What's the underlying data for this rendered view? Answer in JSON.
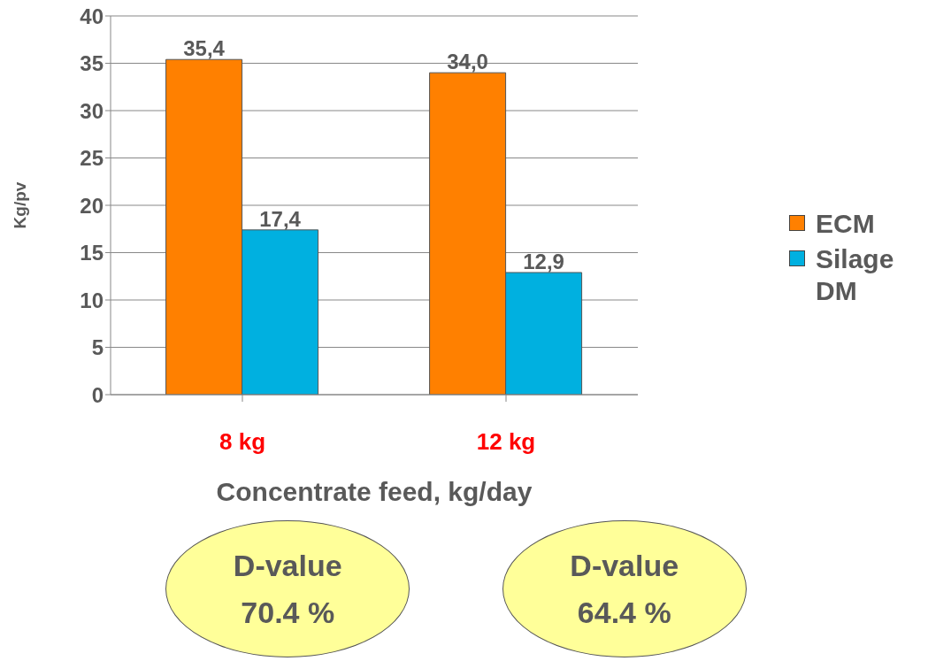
{
  "chart_data": {
    "type": "bar",
    "ylabel": "Kg/pv",
    "xlabel": "Concentrate feed, kg/day",
    "categories": [
      "8 kg",
      "12 kg"
    ],
    "series": [
      {
        "name": "ECM",
        "color": "#ff8000",
        "values": [
          35.4,
          34.0
        ],
        "value_labels": [
          "35,4",
          "34,0"
        ]
      },
      {
        "name": "Silage DM",
        "color": "#00b0e0",
        "values": [
          17.4,
          12.9
        ],
        "value_labels": [
          "17,4",
          "12,9"
        ]
      }
    ],
    "ylim": [
      0,
      40
    ],
    "yticks": [
      0,
      5,
      10,
      15,
      20,
      25,
      30,
      35,
      40
    ],
    "grid": "y",
    "legend": "right",
    "annotations": [
      "D-value\n70.4 %",
      "D-value\n64.4 %"
    ]
  }
}
